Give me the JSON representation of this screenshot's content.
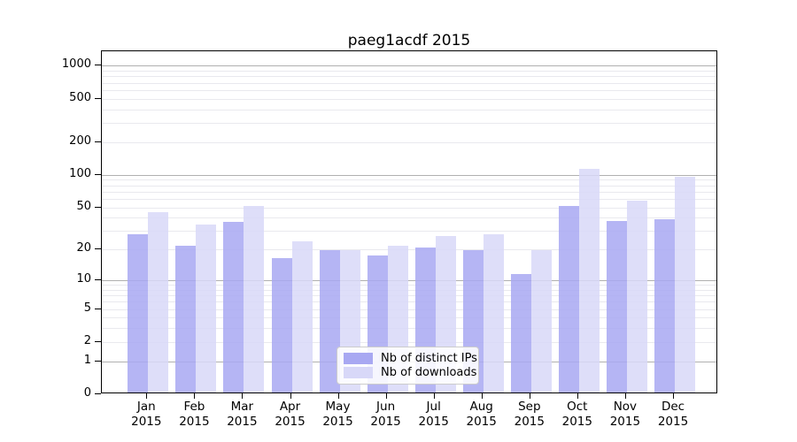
{
  "title": "paeg1acdf 2015",
  "colors": {
    "background": "#ffffff",
    "distinct_ips_bar": "#a8a8f2",
    "downloads_bar": "#d8d8f8",
    "grid_major": "#b0b0b0",
    "grid_minor": "#e9e9ee",
    "axis_spine": "#000000"
  },
  "legend": {
    "position": "lower center",
    "items": [
      {
        "label": "Nb of distinct IPs",
        "color": "#a8a8f2"
      },
      {
        "label": "Nb of downloads",
        "color": "#d8d8f8"
      }
    ]
  },
  "axes": {
    "y_tick_labels": [
      "0",
      "1",
      "2",
      "5",
      "10",
      "20",
      "50",
      "100",
      "200",
      "500",
      "1000"
    ],
    "x_months": [
      "Jan",
      "Feb",
      "Mar",
      "Apr",
      "May",
      "Jun",
      "Jul",
      "Aug",
      "Sep",
      "Oct",
      "Nov",
      "Dec"
    ],
    "x_year": "2015"
  },
  "chart_data": {
    "type": "bar",
    "title": "paeg1acdf 2015",
    "categories": [
      "Jan 2015",
      "Feb 2015",
      "Mar 2015",
      "Apr 2015",
      "May 2015",
      "Jun 2015",
      "Jul 2015",
      "Aug 2015",
      "Sep 2015",
      "Oct 2015",
      "Nov 2015",
      "Dec 2015"
    ],
    "series": [
      {
        "name": "Nb of distinct IPs",
        "color": "#a8a8f2",
        "values": [
          27,
          21,
          35,
          16,
          19,
          17,
          20,
          19,
          11,
          50,
          36,
          37
        ]
      },
      {
        "name": "Nb of downloads",
        "color": "#d8d8f8",
        "values": [
          43,
          33,
          50,
          23,
          19,
          21,
          26,
          27,
          19,
          110,
          55,
          92
        ]
      }
    ],
    "xlabel": "",
    "ylabel": "",
    "y_scale": "log-like: position proportional to log(1+value)",
    "y_ticks": [
      0,
      1,
      2,
      5,
      10,
      20,
      50,
      100,
      200,
      500,
      1000
    ],
    "ylim": [
      0,
      1350
    ],
    "grid": "horizontal major (1,10,100,1000) + minor (2-9 per decade)",
    "legend_position": "lower center"
  }
}
